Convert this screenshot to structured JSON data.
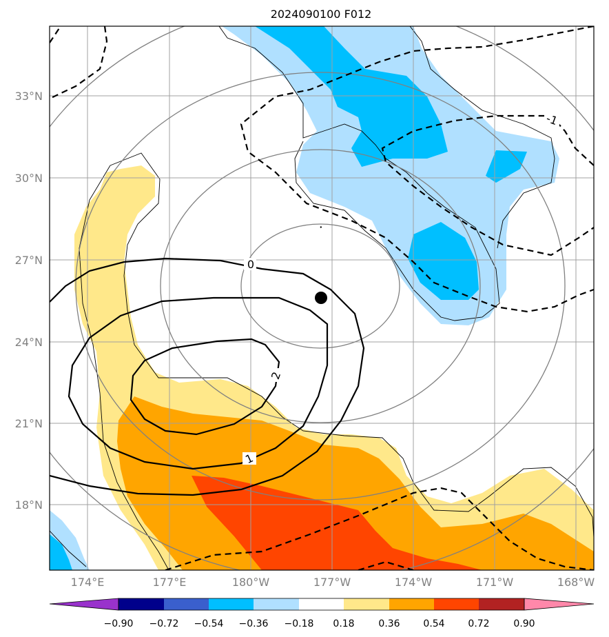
{
  "title": "2024090100 F012",
  "map": {
    "lat_ticks": [
      "33°N",
      "30°N",
      "27°N",
      "24°N",
      "21°N",
      "18°N"
    ],
    "lon_ticks": [
      "174°E",
      "177°E",
      "180°W",
      "177°W",
      "174°W",
      "171°W",
      "168°W"
    ],
    "grid": true,
    "center_marker": {
      "lat": 25.6,
      "lon": "177.3°W"
    }
  },
  "contour_labels": [
    "0",
    "2",
    "1",
    "-1"
  ],
  "colorbar": {
    "tick_labels": [
      "−0.90",
      "−0.72",
      "−0.54",
      "−0.36",
      "−0.18",
      "0.18",
      "0.36",
      "0.54",
      "0.72",
      "0.90"
    ],
    "colors": [
      "#9932cc",
      "#00008b",
      "#3a5fcd",
      "#00bfff",
      "#b0e0ff",
      "#ffffff",
      "#ffe88a",
      "#ffa500",
      "#ff4500",
      "#b22222",
      "#ff88aa"
    ]
  }
}
